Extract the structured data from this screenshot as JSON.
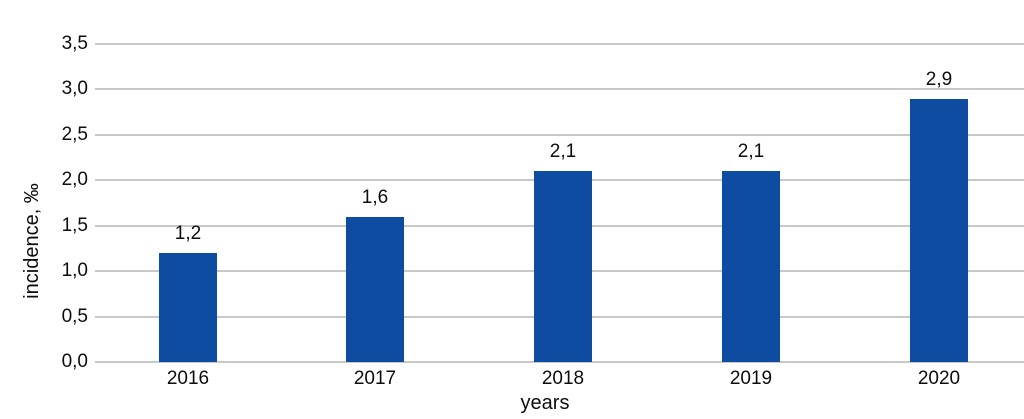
{
  "chart_data": {
    "type": "bar",
    "title": "",
    "categories": [
      "2016",
      "2017",
      "2018",
      "2019",
      "2020"
    ],
    "values": [
      1.2,
      1.6,
      2.1,
      2.1,
      2.9
    ],
    "value_labels": [
      "1,2",
      "1,6",
      "2,1",
      "2,1",
      "2,9"
    ],
    "xlabel": "years",
    "ylabel": "incidence, ‰",
    "ylim": [
      0,
      3.5
    ],
    "ytick_step": 0.5,
    "ytick_labels": [
      "0,0",
      "0,5",
      "1,0",
      "1,5",
      "2,0",
      "2,5",
      "3,0",
      "3,5"
    ],
    "grid": true,
    "legend_position": "none",
    "bar_color": "#0d4ca0",
    "gridline_color": "#c8c8c8",
    "text_color": "#0d0d0d"
  }
}
